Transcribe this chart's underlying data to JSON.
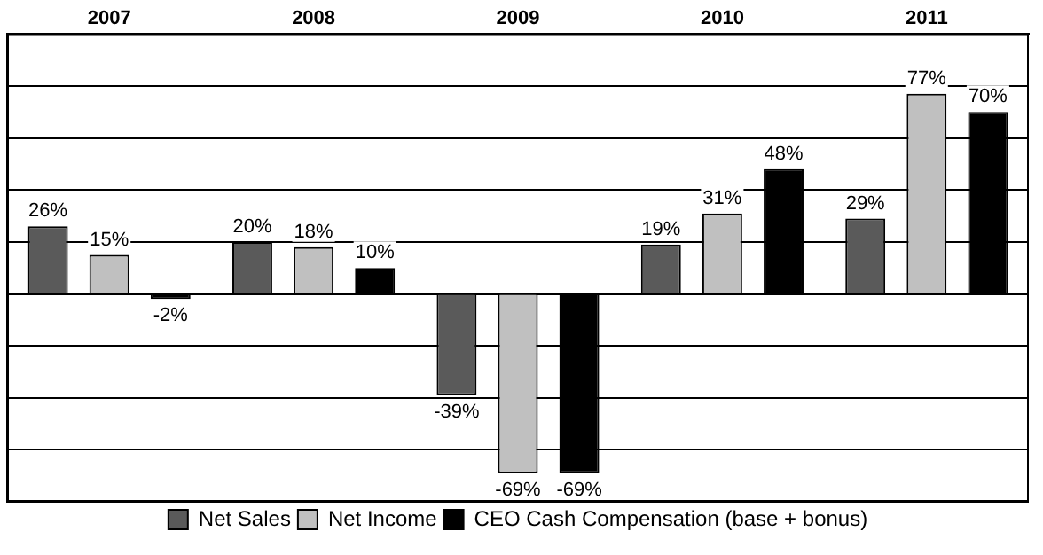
{
  "chart_data": {
    "type": "bar",
    "categories": [
      "2007",
      "2008",
      "2009",
      "2010",
      "2011"
    ],
    "series": [
      {
        "name": "Net Sales",
        "color": "#5a5a5a",
        "values": [
          26,
          20,
          -39,
          19,
          29
        ],
        "value_labels": [
          "26%",
          "20%",
          "-39%",
          "19%",
          "29%"
        ]
      },
      {
        "name": "Net Income",
        "color": "#c0c0c0",
        "values": [
          15,
          18,
          -69,
          31,
          77
        ],
        "value_labels": [
          "15%",
          "18%",
          "-69%",
          "31%",
          "77%"
        ]
      },
      {
        "name": "CEO Cash Compensation (base + bonus)",
        "color": "#000000",
        "values": [
          -2,
          10,
          -69,
          48,
          70
        ],
        "value_labels": [
          "-2%",
          "10%",
          "-69%",
          "48%",
          "70%"
        ]
      }
    ],
    "grid": "y",
    "legend": "bottom",
    "tick_labels": "x"
  }
}
